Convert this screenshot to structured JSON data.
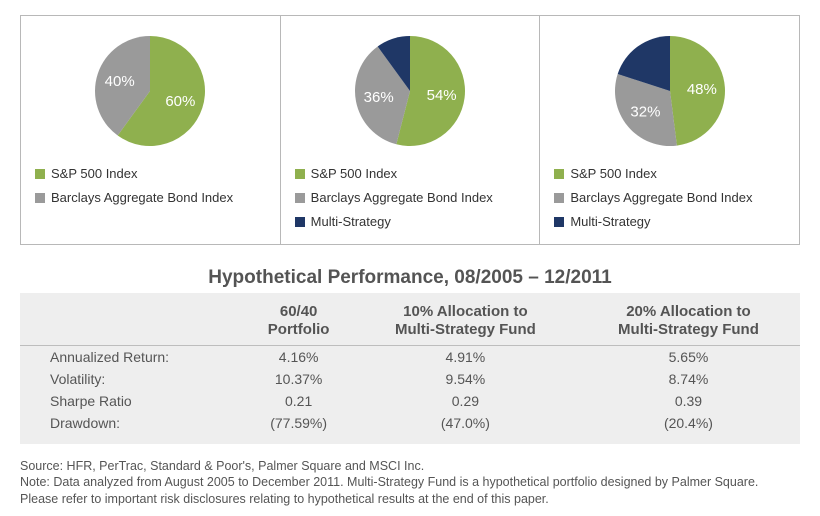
{
  "colors": {
    "sp500": "#8fb04e",
    "barclays": "#9a9a9a",
    "multi": "#1f3766",
    "text_label": "#ffffff",
    "border": "#b8b8b8",
    "table_bg": "#eeeeee"
  },
  "pie_radius": 55,
  "chart_area_height": 130,
  "legend_labels": {
    "sp500": "S&P 500 Index",
    "barclays": "Barclays Aggregate Bond Index",
    "multi": "Multi-Strategy"
  },
  "charts": [
    {
      "slices": [
        {
          "key": "sp500",
          "value": 60,
          "label": "60%"
        },
        {
          "key": "barclays",
          "value": 40,
          "label": "40%"
        }
      ],
      "show_legend_keys": [
        "sp500",
        "barclays"
      ]
    },
    {
      "slices": [
        {
          "key": "sp500",
          "value": 54,
          "label": "54%"
        },
        {
          "key": "barclays",
          "value": 36,
          "label": "36%"
        },
        {
          "key": "multi",
          "value": 10,
          "label": "10%"
        }
      ],
      "show_legend_keys": [
        "sp500",
        "barclays",
        "multi"
      ]
    },
    {
      "slices": [
        {
          "key": "sp500",
          "value": 48,
          "label": "48%"
        },
        {
          "key": "barclays",
          "value": 32,
          "label": "32%"
        },
        {
          "key": "multi",
          "value": 20,
          "label": "20%"
        }
      ],
      "show_legend_keys": [
        "sp500",
        "barclays",
        "multi"
      ]
    }
  ],
  "table": {
    "title": "Hypothetical Performance, 08/2005 – 12/2011",
    "columns": [
      "",
      "60/40\nPortfolio",
      "10% Allocation to\nMulti-Strategy Fund",
      "20% Allocation to\nMulti-Strategy Fund"
    ],
    "rows": [
      [
        "Annualized Return:",
        "4.16%",
        "4.91%",
        "5.65%"
      ],
      [
        "Volatility:",
        "10.37%",
        "9.54%",
        "8.74%"
      ],
      [
        "Sharpe Ratio",
        "0.21",
        "0.29",
        "0.39"
      ],
      [
        "Drawdown:",
        "(77.59%)",
        "(47.0%)",
        "(20.4%)"
      ]
    ]
  },
  "footnotes": [
    "Source: HFR, PerTrac, Standard & Poor's, Palmer Square and MSCI Inc.",
    "Note: Data analyzed from August 2005 to December 2011. Multi-Strategy Fund is a hypothetical portfolio designed by Palmer Square. Please refer to important risk disclosures relating to hypothetical results at the end of this paper."
  ]
}
